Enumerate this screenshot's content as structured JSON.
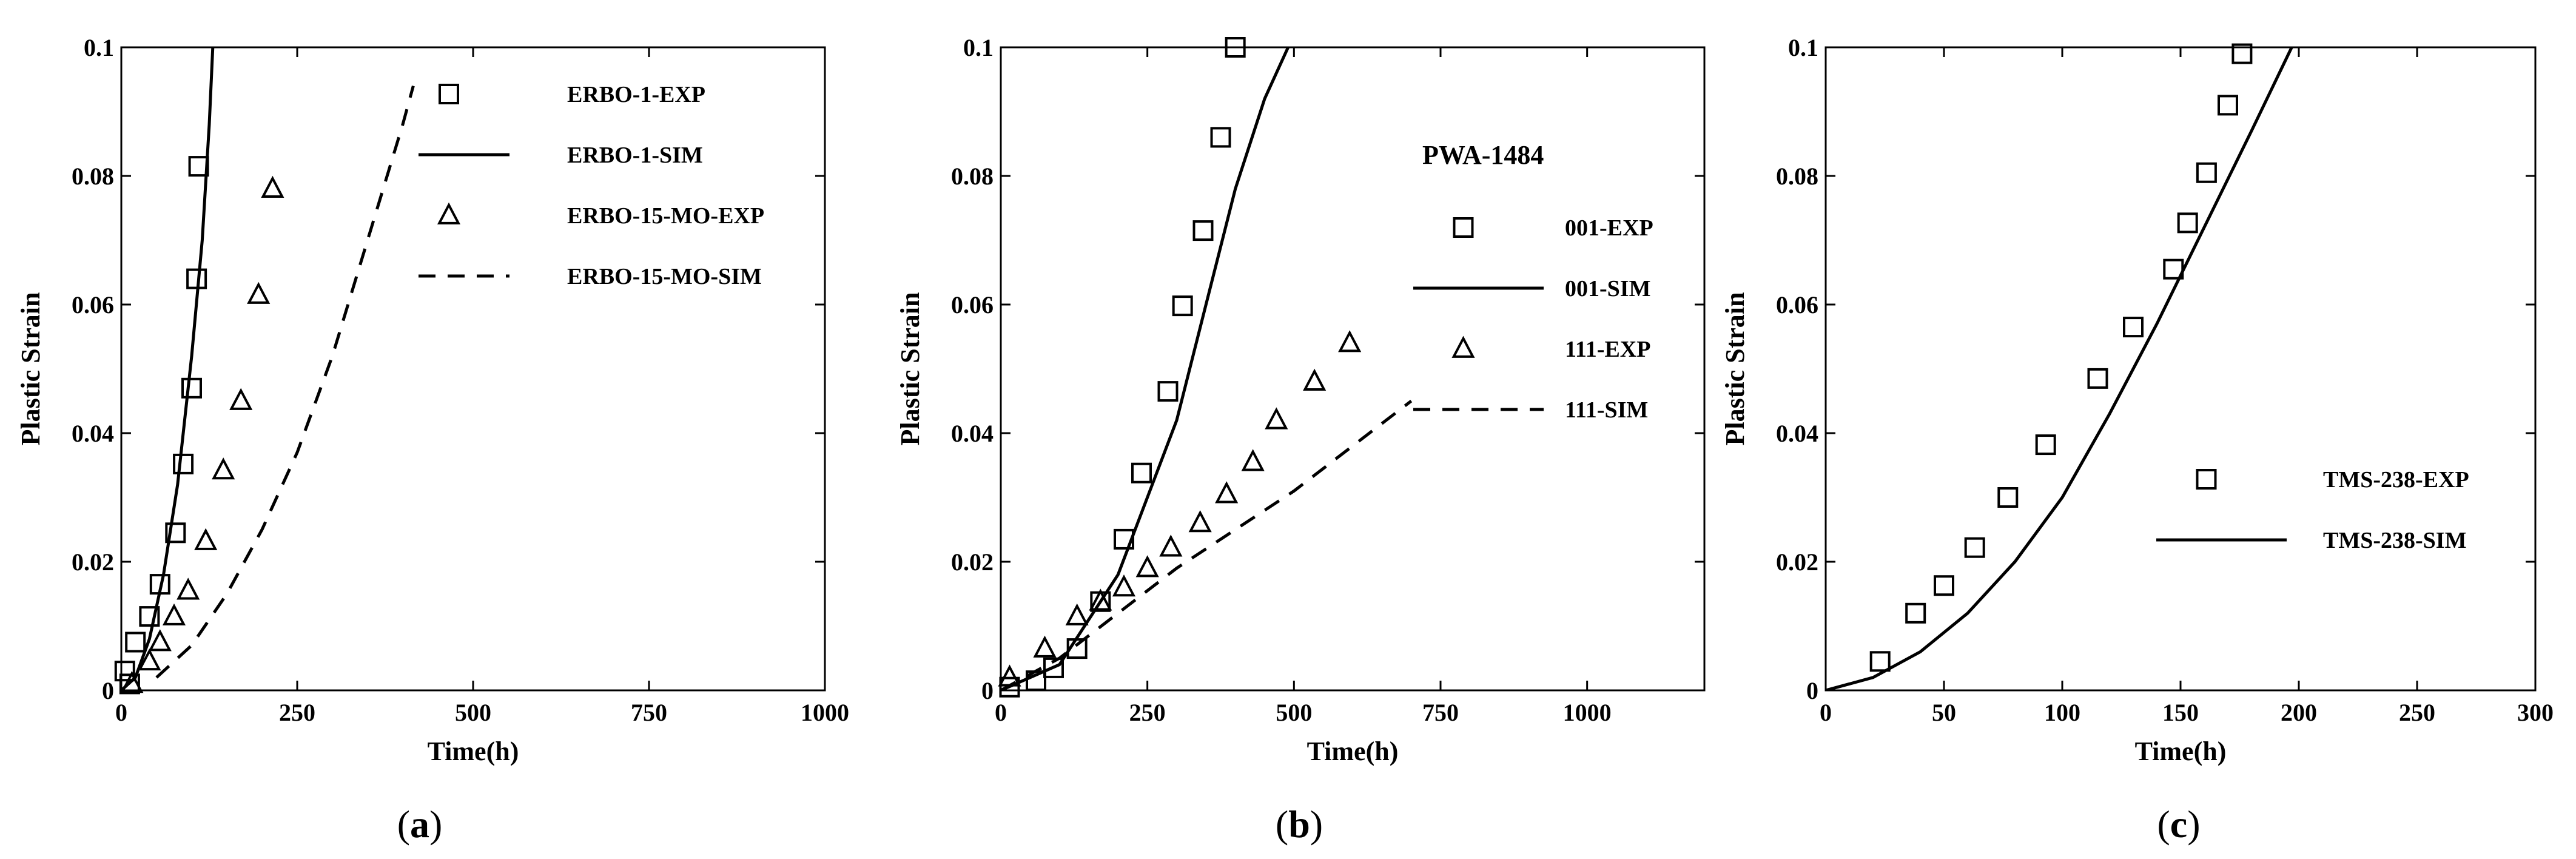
{
  "chart_data": [
    {
      "type": "scatter",
      "panel_label": {
        "open": "(",
        "letter": "a",
        "close": ")"
      },
      "xlabel": "Time(h)",
      "ylabel": "Plastic Strain",
      "xlim": [
        0,
        1000
      ],
      "ylim": [
        0,
        0.1
      ],
      "xticks": [
        0,
        250,
        500,
        750,
        1000
      ],
      "yticks": [
        0,
        0.02,
        0.04,
        0.06,
        0.08,
        0.1
      ],
      "xtick_labels": [
        "0",
        "250",
        "500",
        "750",
        "1000"
      ],
      "ytick_labels": [
        "0",
        "0.02",
        "0.04",
        "0.06",
        "0.08",
        "0.1"
      ],
      "legend_title": "",
      "legend_position": "upper-right",
      "series": [
        {
          "name": "ERBO-1-EXP",
          "kind": "marker",
          "marker": "square",
          "x": [
            5,
            12,
            20,
            40,
            55,
            77,
            88,
            100,
            107,
            110
          ],
          "y": [
            0.003,
            0.001,
            0.0075,
            0.0115,
            0.0165,
            0.0245,
            0.0352,
            0.047,
            0.064,
            0.0815
          ]
        },
        {
          "name": "ERBO-1-SIM",
          "kind": "line",
          "dash": "solid",
          "x": [
            0,
            20,
            40,
            60,
            80,
            100,
            115,
            125,
            130
          ],
          "y": [
            0,
            0.002,
            0.008,
            0.018,
            0.032,
            0.052,
            0.07,
            0.088,
            0.1
          ]
        },
        {
          "name": "ERBO-15-MO-EXP",
          "kind": "marker",
          "marker": "triangle",
          "x": [
            15,
            40,
            55,
            75,
            95,
            120,
            145,
            170,
            195,
            215
          ],
          "y": [
            0.001,
            0.0045,
            0.0075,
            0.0115,
            0.0155,
            0.0232,
            0.0342,
            0.045,
            0.0615,
            0.078
          ]
        },
        {
          "name": "ERBO-15-MO-SIM",
          "kind": "line",
          "dash": "dashed",
          "x": [
            50,
            100,
            150,
            200,
            250,
            300,
            350,
            400,
            415
          ],
          "y": [
            0.002,
            0.007,
            0.015,
            0.025,
            0.037,
            0.052,
            0.07,
            0.088,
            0.094
          ]
        }
      ]
    },
    {
      "type": "scatter",
      "panel_label": {
        "open": "(",
        "letter": "b",
        "close": ")"
      },
      "xlabel": "Time(h)",
      "ylabel": "Plastic Strain",
      "xlim": [
        0,
        1200
      ],
      "ylim": [
        0,
        0.1
      ],
      "xticks": [
        0,
        250,
        500,
        750,
        1000
      ],
      "yticks": [
        0,
        0.02,
        0.04,
        0.06,
        0.08,
        0.1
      ],
      "xtick_labels": [
        "0",
        "250",
        "500",
        "750",
        "1000"
      ],
      "ytick_labels": [
        "0",
        "0.02",
        "0.04",
        "0.06",
        "0.08",
        "0.1"
      ],
      "legend_title": "PWA-1484",
      "legend_position": "upper-right",
      "series": [
        {
          "name": "001-EXP",
          "kind": "marker",
          "marker": "square",
          "x": [
            15,
            60,
            90,
            130,
            170,
            210,
            240,
            285,
            310,
            345,
            375,
            400
          ],
          "y": [
            0.0005,
            0.0015,
            0.0035,
            0.0065,
            0.0138,
            0.0235,
            0.0338,
            0.0465,
            0.0598,
            0.0715,
            0.086,
            0.1
          ]
        },
        {
          "name": "001-SIM",
          "kind": "line",
          "dash": "solid",
          "x": [
            0,
            100,
            200,
            300,
            350,
            400,
            450,
            490
          ],
          "y": [
            0,
            0.004,
            0.018,
            0.042,
            0.06,
            0.078,
            0.092,
            0.1
          ]
        },
        {
          "name": "111-EXP",
          "kind": "marker",
          "marker": "triangle",
          "x": [
            15,
            75,
            130,
            170,
            210,
            250,
            290,
            340,
            385,
            430,
            470,
            535,
            595
          ],
          "y": [
            0.002,
            0.0065,
            0.0115,
            0.0138,
            0.016,
            0.019,
            0.0222,
            0.026,
            0.0305,
            0.0355,
            0.042,
            0.048,
            0.054
          ]
        },
        {
          "name": "111-SIM",
          "kind": "line",
          "dash": "dashed",
          "x": [
            0,
            100,
            200,
            300,
            400,
            500,
            600,
            700
          ],
          "y": [
            0,
            0.005,
            0.012,
            0.019,
            0.025,
            0.031,
            0.038,
            0.045
          ]
        }
      ]
    },
    {
      "type": "scatter",
      "panel_label": {
        "open": "(",
        "letter": "c",
        "close": ")"
      },
      "xlabel": "Time(h)",
      "ylabel": "Plastic Strain",
      "xlim": [
        0,
        300
      ],
      "ylim": [
        0,
        0.1
      ],
      "xticks": [
        0,
        50,
        100,
        150,
        200,
        250,
        300
      ],
      "yticks": [
        0,
        0.02,
        0.04,
        0.06,
        0.08,
        0.1
      ],
      "xtick_labels": [
        "0",
        "50",
        "100",
        "150",
        "200",
        "250",
        "300"
      ],
      "ytick_labels": [
        "0",
        "0.02",
        "0.04",
        "0.06",
        "0.08",
        "0.1"
      ],
      "legend_title": "",
      "legend_position": "right",
      "series": [
        {
          "name": "TMS-238-EXP",
          "kind": "marker",
          "marker": "square",
          "x": [
            23,
            38,
            50,
            63,
            77,
            93,
            115,
            130,
            147,
            153,
            161,
            170,
            176
          ],
          "y": [
            0.0045,
            0.012,
            0.0163,
            0.0222,
            0.03,
            0.0382,
            0.0485,
            0.0565,
            0.0655,
            0.0727,
            0.0805,
            0.091,
            0.099
          ]
        },
        {
          "name": "TMS-238-SIM",
          "kind": "line",
          "dash": "solid",
          "x": [
            0,
            20,
            40,
            60,
            80,
            100,
            120,
            140,
            160,
            180,
            197
          ],
          "y": [
            0,
            0.002,
            0.006,
            0.012,
            0.02,
            0.03,
            0.043,
            0.057,
            0.072,
            0.087,
            0.1
          ]
        }
      ]
    }
  ]
}
